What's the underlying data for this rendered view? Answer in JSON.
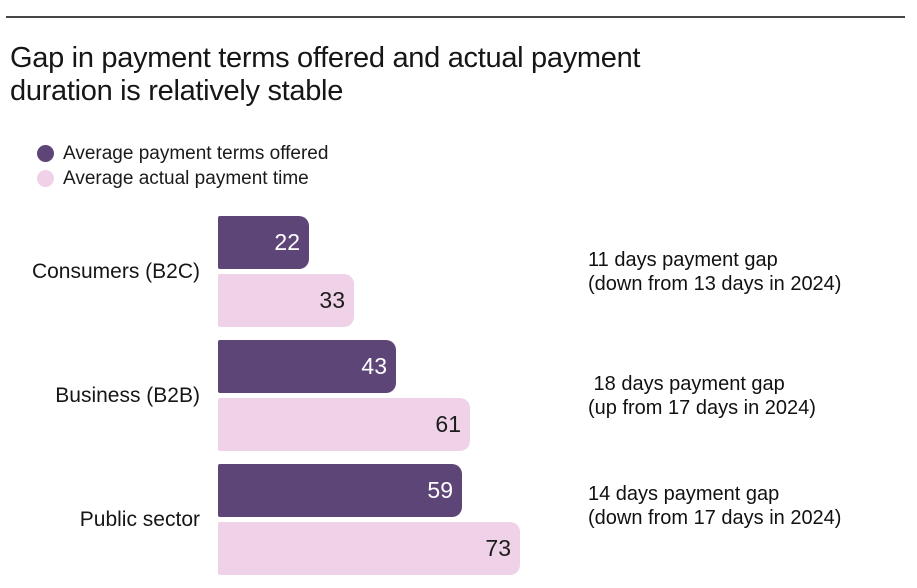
{
  "chart_data": {
    "type": "bar",
    "orientation": "horizontal",
    "title": "Gap in payment terms offered and actual payment duration is relatively stable",
    "categories": [
      "Consumers (B2C)",
      "Business (B2B)",
      "Public sector"
    ],
    "series": [
      {
        "name": "Average payment terms offered",
        "color": "#5e4578",
        "values": [
          22,
          43,
          59
        ]
      },
      {
        "name": "Average actual payment time",
        "color": "#f0d2e8",
        "values": [
          33,
          61,
          73
        ]
      }
    ],
    "annotations": [
      [
        "11 days payment gap",
        "(down from 13 days in 2024)"
      ],
      [
        " 18 days payment gap",
        "(up from 17 days in 2024)"
      ],
      [
        "14 days payment gap",
        "(down from 17 days in 2024)"
      ]
    ],
    "value_labels": true,
    "xlim": [
      0,
      73
    ],
    "axes_visible": false,
    "grid": false,
    "legend_position": "top-left",
    "unit": "days"
  },
  "styles": {
    "series1_color": "#5e4578",
    "series2_color": "#f0d2e8",
    "text_color": "#1a1a1a",
    "rule_color": "#454545",
    "value_on_dark": "#ffffff",
    "value_on_light": "#1c1c1c",
    "background": "#ffffff"
  }
}
